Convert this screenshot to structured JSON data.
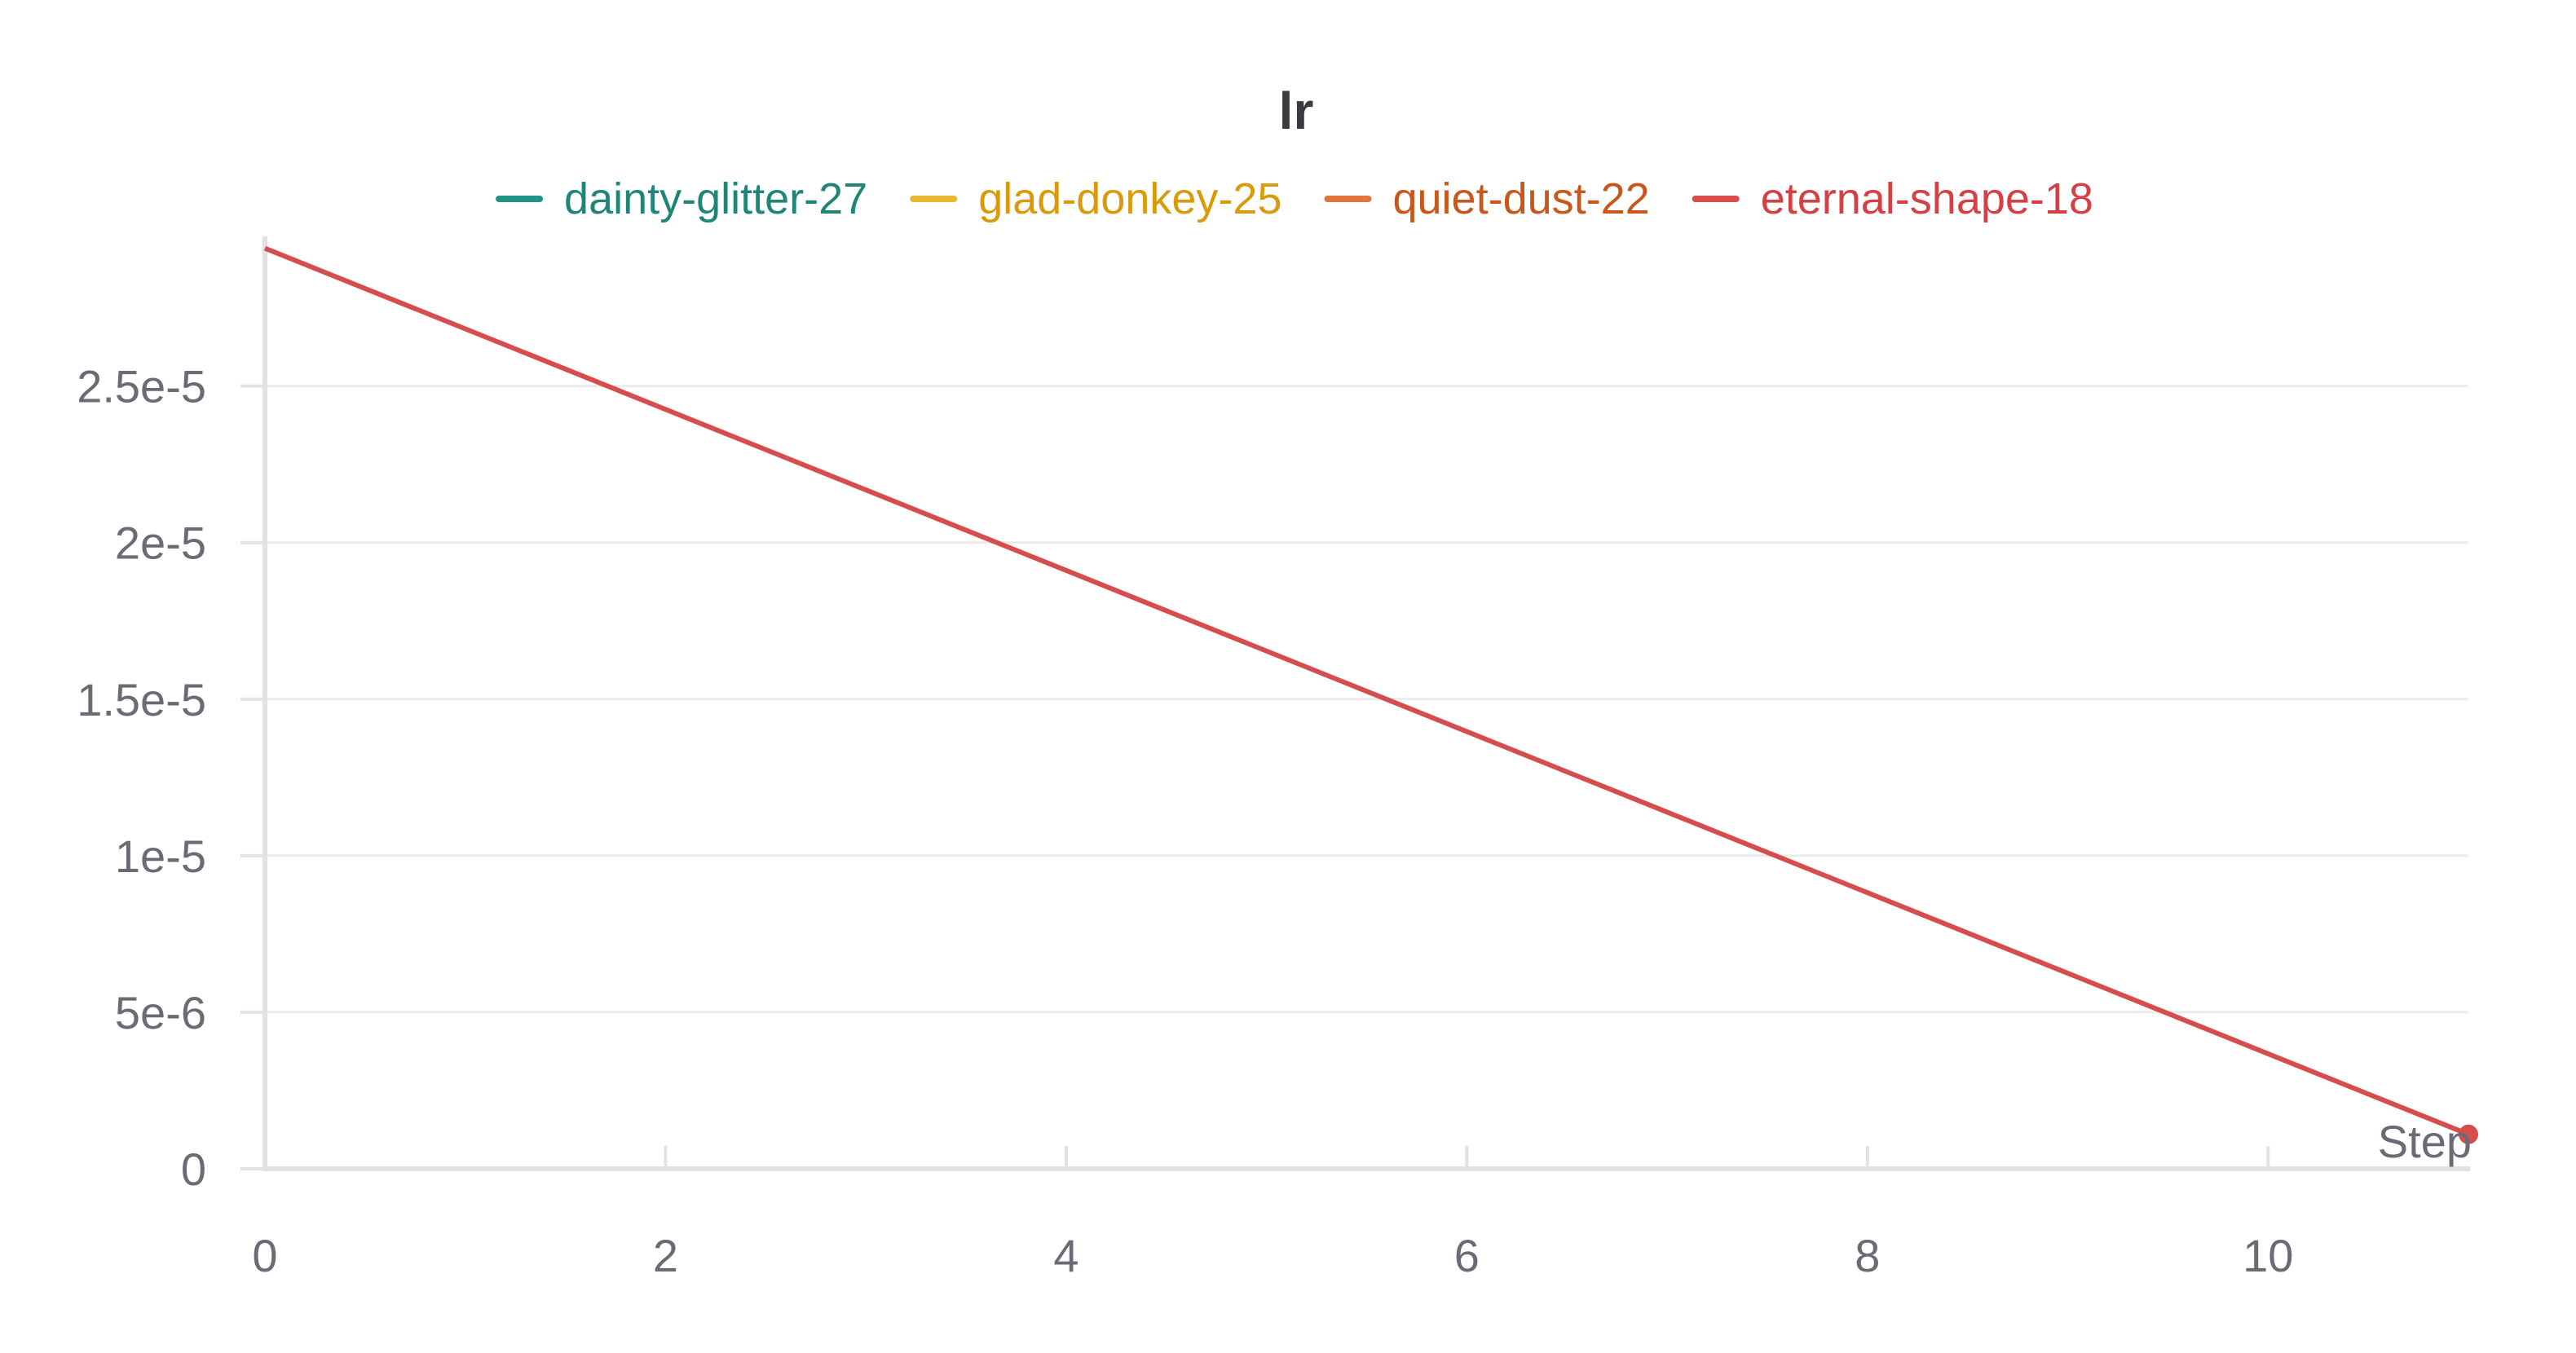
{
  "chart_data": {
    "type": "line",
    "title": "lr",
    "xlabel": "Step",
    "ylabel": "",
    "xlim": [
      0,
      11
    ],
    "ylim": [
      0,
      2.952e-05
    ],
    "x_ticks": [
      0,
      2,
      4,
      6,
      8,
      10
    ],
    "x_tick_labels": [
      "0",
      "2",
      "4",
      "6",
      "8",
      "10"
    ],
    "y_ticks": [
      0,
      5e-06,
      1e-05,
      1.5e-05,
      2e-05,
      2.5e-05
    ],
    "y_tick_labels": [
      "0",
      "5e-6",
      "1e-5",
      "1.5e-5",
      "2e-5",
      "2.5e-5"
    ],
    "grid": true,
    "legend_position": "top-center",
    "series": [
      {
        "name": "dainty-glitter-27",
        "color": "#229487",
        "text_color": "#1f8577",
        "x": [],
        "y": []
      },
      {
        "name": "glad-donkey-25",
        "color": "#e8b92f",
        "text_color": "#d99a0b",
        "x": [],
        "y": []
      },
      {
        "name": "quiet-dust-22",
        "color": "#e0763d",
        "text_color": "#c9561a",
        "x": [],
        "y": []
      },
      {
        "name": "eternal-shape-18",
        "color": "#d64d4d",
        "text_color": "#d64045",
        "x": [
          0,
          11
        ],
        "y": [
          2.94e-05,
          1.1e-06
        ],
        "end_marker": true
      }
    ]
  }
}
